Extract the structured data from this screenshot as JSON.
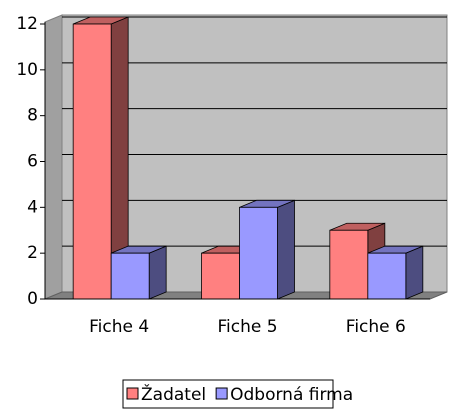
{
  "chart_data": {
    "type": "bar3d",
    "categories": [
      "Fiche 4",
      "Fiche 5",
      "Fiche 6"
    ],
    "series": [
      {
        "name": "Žadatel",
        "color": "#ff8080",
        "values": [
          12,
          2,
          3
        ]
      },
      {
        "name": "Odborná firma",
        "color": "#9999ff",
        "values": [
          2,
          4,
          2
        ]
      }
    ],
    "ylim": [
      0,
      12
    ],
    "yticks": [
      0,
      2,
      4,
      6,
      8,
      10,
      12
    ],
    "grid": true,
    "legend": "bottom"
  }
}
